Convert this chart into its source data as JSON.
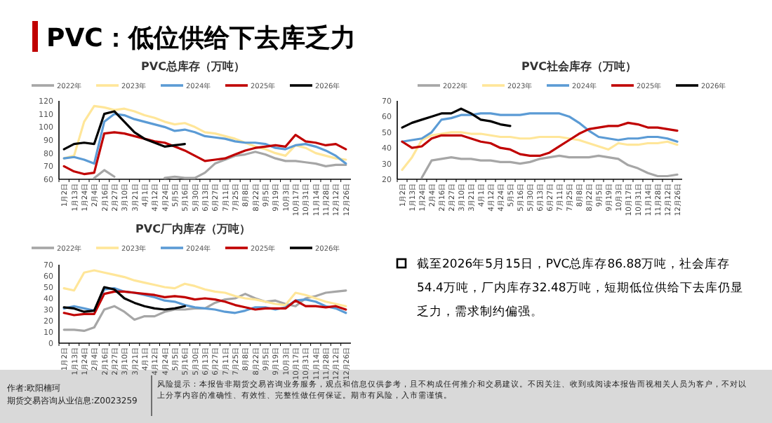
{
  "chart_data": [
    {
      "type": "other",
      "title": "PVC：低位供给下去库乏力",
      "annotations": [
        "截至2026年5月15日，PVC总库存86.88万吨，社会库存54.4万吨，厂内库存32.48万吨，短期低位供给下去库仍显乏力，需求制约偏强。",
        "作者:欧阳楠珂",
        "期货交易咨询从业信息:Z0023259",
        "风险提示：本报告非期货交易咨询业务服务，观点和信息仅供参考，且不构成任何推介和交易建议。不因关注、收到或阅读本报告而视相关人员为客户，不对以上分享内容的准确性、有效性、完整性做任何保证。期市有风险，入市需谨慎。"
      ]
    },
    {
      "type": "line",
      "title": "PVC总库存（万吨）",
      "legend": "top",
      "ylim": [
        60,
        120
      ],
      "yticks": [
        60,
        70,
        80,
        90,
        100,
        110,
        120
      ],
      "categories": [
        "1月2日",
        "1月13日",
        "1月24日",
        "2月4日",
        "2月16日",
        "2月27日",
        "3月10日",
        "3月21日",
        "4月1日",
        "4月12日",
        "4月24日",
        "5月5日",
        "5月16日",
        "5月30日",
        "6月13日",
        "6月27日",
        "7月11日",
        "7月25日",
        "8月8日",
        "8月22日",
        "9月5日",
        "9月19日",
        "10月3日",
        "10月17日",
        "10月31日",
        "11月14日",
        "11月28日",
        "12月12日",
        "12月26日"
      ],
      "series": [
        {
          "name": "2022年",
          "color": "#a6a6a6",
          "values": [
            null,
            null,
            null,
            61,
            67,
            62,
            null,
            null,
            null,
            null,
            61,
            62,
            61,
            61,
            65,
            72,
            75,
            78,
            79,
            81,
            79,
            76,
            74,
            74,
            73,
            72,
            70,
            71,
            71
          ]
        },
        {
          "name": "2023年",
          "color": "#ffe699",
          "values": [
            76,
            78,
            104,
            116,
            115,
            113,
            114,
            112,
            109,
            107,
            104,
            102,
            103,
            100,
            96,
            95,
            93,
            91,
            88,
            85,
            83,
            80,
            78,
            86,
            84,
            80,
            78,
            76,
            75
          ]
        },
        {
          "name": "2024年",
          "color": "#5b9bd5",
          "values": [
            76,
            77,
            75,
            72,
            104,
            110,
            109,
            106,
            104,
            102,
            100,
            97,
            98,
            96,
            93,
            92,
            91,
            89,
            88,
            88,
            87,
            84,
            83,
            86,
            87,
            85,
            82,
            78,
            72
          ]
        },
        {
          "name": "2025年",
          "color": "#c00000",
          "values": [
            70,
            66,
            64,
            65,
            95,
            96,
            95,
            93,
            91,
            89,
            88,
            85,
            82,
            78,
            74,
            75,
            76,
            79,
            82,
            84,
            85,
            86,
            85,
            94,
            89,
            88,
            86,
            87,
            83
          ]
        },
        {
          "name": "2026年",
          "color": "#000000",
          "values": [
            83,
            87,
            88,
            87,
            110,
            112,
            104,
            96,
            91,
            88,
            85,
            86,
            87,
            null,
            null,
            null,
            null,
            null,
            null,
            null,
            null,
            null,
            null,
            null,
            null,
            null,
            null,
            null,
            null
          ]
        }
      ]
    },
    {
      "type": "line",
      "title": "PVC社会库存（万吨）",
      "legend": "top",
      "ylim": [
        20,
        70
      ],
      "yticks": [
        20,
        30,
        40,
        50,
        60,
        70
      ],
      "categories": [
        "1月2日",
        "1月13日",
        "1月24日",
        "2月4日",
        "2月16日",
        "2月27日",
        "3月10日",
        "3月21日",
        "4月1日",
        "4月12日",
        "4月24日",
        "5月5日",
        "5月16日",
        "5月30日",
        "6月13日",
        "6月27日",
        "7月11日",
        "7月25日",
        "8月8日",
        "8月22日",
        "9月5日",
        "9月19日",
        "10月3日",
        "10月17日",
        "10月31日",
        "11月14日",
        "11月28日",
        "12月12日",
        "12月26日"
      ],
      "series": [
        {
          "name": "2022年",
          "color": "#a6a6a6",
          "values": [
            null,
            null,
            21,
            32,
            33,
            34,
            33,
            33,
            32,
            32,
            31,
            31,
            30,
            31,
            33,
            34,
            35,
            34,
            34,
            34,
            35,
            34,
            33,
            29,
            27,
            24,
            22,
            22,
            23
          ]
        },
        {
          "name": "2023年",
          "color": "#ffe699",
          "values": [
            26,
            34,
            45,
            48,
            49,
            50,
            50,
            49,
            49,
            48,
            47,
            47,
            46,
            46,
            47,
            47,
            47,
            46,
            45,
            43,
            41,
            39,
            43,
            42,
            42,
            43,
            43,
            44,
            42
          ]
        },
        {
          "name": "2024年",
          "color": "#5b9bd5",
          "values": [
            44,
            45,
            46,
            50,
            58,
            59,
            61,
            61,
            62,
            62,
            61,
            61,
            61,
            62,
            62,
            62,
            62,
            60,
            56,
            51,
            47,
            46,
            45,
            46,
            46,
            47,
            47,
            46,
            44
          ]
        },
        {
          "name": "2025年",
          "color": "#c00000",
          "values": [
            44,
            40,
            41,
            46,
            48,
            48,
            48,
            46,
            44,
            43,
            40,
            39,
            36,
            35,
            35,
            37,
            41,
            45,
            49,
            52,
            53,
            54,
            54,
            56,
            55,
            53,
            53,
            52,
            51
          ]
        },
        {
          "name": "2026年",
          "color": "#000000",
          "values": [
            53,
            56,
            58,
            60,
            62,
            62,
            65,
            62,
            58,
            57,
            55,
            54,
            null,
            null,
            null,
            null,
            null,
            null,
            null,
            null,
            null,
            null,
            null,
            null,
            null,
            null,
            null,
            null,
            null
          ]
        }
      ]
    },
    {
      "type": "line",
      "title": "PVC厂内库存（万吨）",
      "legend": "top",
      "ylim": [
        0,
        70
      ],
      "yticks": [
        0,
        10,
        20,
        30,
        40,
        50,
        60,
        70
      ],
      "categories": [
        "1月2日",
        "1月13日",
        "1月24日",
        "2月4日",
        "2月16日",
        "2月27日",
        "3月10日",
        "3月21日",
        "4月1日",
        "4月12日",
        "4月24日",
        "5月5日",
        "5月16日",
        "5月30日",
        "6月13日",
        "6月27日",
        "7月11日",
        "7月25日",
        "8月8日",
        "8月22日",
        "9月5日",
        "9月19日",
        "10月3日",
        "10月17日",
        "10月31日",
        "11月14日",
        "11月28日",
        "12月12日",
        "12月26日"
      ],
      "series": [
        {
          "name": "2022年",
          "color": "#a6a6a6",
          "values": [
            12,
            12,
            11,
            14,
            30,
            33,
            28,
            21,
            24,
            24,
            28,
            30,
            30,
            31,
            31,
            36,
            39,
            40,
            44,
            40,
            37,
            38,
            35,
            33,
            40,
            42,
            45,
            46,
            47
          ]
        },
        {
          "name": "2023年",
          "color": "#ffe699",
          "values": [
            49,
            47,
            63,
            65,
            63,
            61,
            59,
            56,
            54,
            52,
            50,
            49,
            53,
            51,
            48,
            46,
            45,
            42,
            40,
            39,
            37,
            35,
            34,
            45,
            43,
            40,
            37,
            35,
            33
          ]
        },
        {
          "name": "2024年",
          "color": "#5b9bd5",
          "values": [
            31,
            33,
            31,
            29,
            48,
            49,
            46,
            45,
            43,
            41,
            38,
            37,
            34,
            32,
            31,
            30,
            28,
            27,
            29,
            32,
            32,
            30,
            32,
            38,
            39,
            37,
            33,
            31,
            27
          ]
        },
        {
          "name": "2025年",
          "color": "#c00000",
          "values": [
            27,
            25,
            26,
            26,
            44,
            46,
            46,
            45,
            44,
            43,
            41,
            42,
            41,
            39,
            40,
            39,
            37,
            34,
            32,
            30,
            31,
            31,
            31,
            38,
            33,
            33,
            32,
            33,
            30
          ]
        },
        {
          "name": "2026年",
          "color": "#000000",
          "values": [
            32,
            31,
            28,
            29,
            50,
            48,
            40,
            36,
            33,
            31,
            30,
            31,
            33,
            null,
            null,
            null,
            null,
            null,
            null,
            null,
            null,
            null,
            null,
            null,
            null,
            null,
            null,
            null,
            null
          ]
        }
      ]
    }
  ]
}
